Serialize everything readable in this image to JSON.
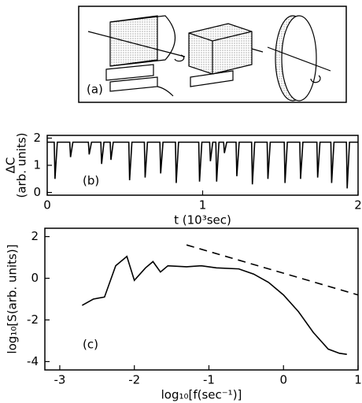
{
  "diagram": {
    "label": "(a)"
  },
  "chart_data": [
    {
      "type": "line",
      "panel_label": "(b)",
      "xlabel": "t (10³sec)",
      "ylabel": [
        "ΔC",
        "(arb. units)"
      ],
      "x": [
        0,
        0.045,
        0.05,
        0.065,
        0.145,
        0.15,
        0.165,
        0.265,
        0.27,
        0.285,
        0.345,
        0.35,
        0.365,
        0.405,
        0.41,
        0.425,
        0.525,
        0.53,
        0.545,
        0.625,
        0.63,
        0.645,
        0.725,
        0.73,
        0.745,
        0.825,
        0.83,
        0.845,
        0.975,
        0.98,
        0.995,
        1.045,
        1.05,
        1.065,
        1.085,
        1.09,
        1.105,
        1.135,
        1.14,
        1.155,
        1.215,
        1.22,
        1.235,
        1.315,
        1.32,
        1.335,
        1.415,
        1.42,
        1.435,
        1.525,
        1.53,
        1.545,
        1.625,
        1.63,
        1.645,
        1.735,
        1.74,
        1.755,
        1.825,
        1.83,
        1.845,
        1.925,
        1.93,
        1.945,
        2
      ],
      "series": [
        {
          "color": "#000000",
          "dash": false,
          "values": [
            1.85,
            1.85,
            0.5,
            1.85,
            1.85,
            1.3,
            1.85,
            1.85,
            1.4,
            1.85,
            1.85,
            1.05,
            1.85,
            1.85,
            1.2,
            1.85,
            1.85,
            0.45,
            1.85,
            1.85,
            0.55,
            1.85,
            1.85,
            0.7,
            1.85,
            1.85,
            0.35,
            1.85,
            1.85,
            0.4,
            1.85,
            1.85,
            1.15,
            1.85,
            1.85,
            0.4,
            1.85,
            1.85,
            1.45,
            1.85,
            1.85,
            0.6,
            1.85,
            1.85,
            0.3,
            1.85,
            1.85,
            0.5,
            1.85,
            1.85,
            0.35,
            1.85,
            1.85,
            0.5,
            1.85,
            1.85,
            0.55,
            1.85,
            1.85,
            0.35,
            1.85,
            1.85,
            0.15,
            1.85,
            1.85
          ]
        }
      ],
      "xlim": [
        0,
        2
      ],
      "xticks": [
        0,
        1,
        2
      ],
      "ylim": [
        -0.1,
        2.1
      ],
      "yticks": [
        0,
        1,
        2
      ]
    },
    {
      "type": "line",
      "panel_label": "(c)",
      "xlabel": "log₁₀[f(sec⁻¹)]",
      "ylabel": [
        "log₁₀[S(arb. units)]"
      ],
      "x": [
        -2.7,
        -2.55,
        -2.4,
        -2.25,
        -2.1,
        -2.0,
        -1.85,
        -1.75,
        -1.65,
        -1.55,
        -1.3,
        -1.1,
        -0.9,
        -0.6,
        -0.4,
        -0.2,
        0,
        0.2,
        0.4,
        0.6,
        0.75,
        0.85
      ],
      "series": [
        {
          "color": "#000000",
          "dash": false,
          "values": [
            -1.3,
            -1.0,
            -0.9,
            0.6,
            1.05,
            -0.1,
            0.5,
            0.8,
            0.3,
            0.6,
            0.55,
            0.6,
            0.5,
            0.45,
            0.2,
            -0.2,
            -0.8,
            -1.6,
            -2.6,
            -3.4,
            -3.6,
            -3.65
          ]
        },
        {
          "color": "#000000",
          "dash": true,
          "x": [
            -1.3,
            1
          ],
          "values": [
            1.6,
            -0.8
          ]
        }
      ],
      "xlim": [
        -3.2,
        1
      ],
      "xticks": [
        -3,
        -2,
        -1,
        0,
        1
      ],
      "ylim": [
        -4.4,
        2.4
      ],
      "yticks": [
        -4,
        -2,
        0,
        2
      ]
    }
  ]
}
